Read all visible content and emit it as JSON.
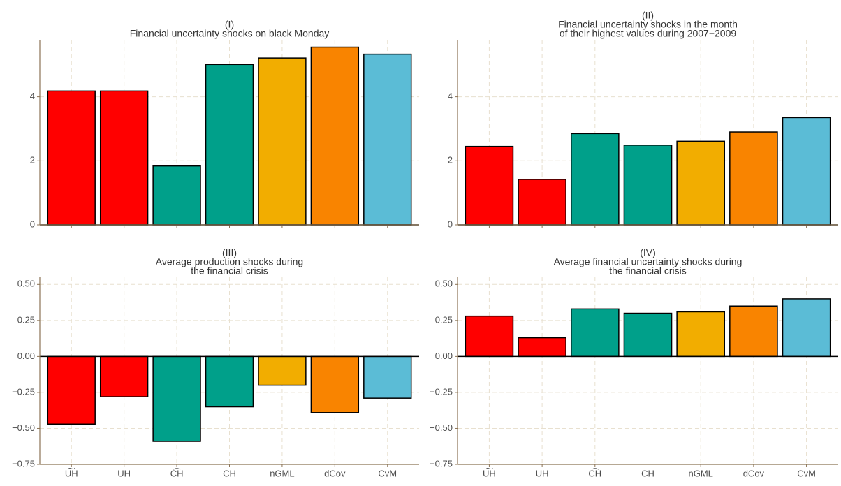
{
  "chart_data": [
    {
      "type": "bar",
      "title": [
        "(I)",
        "Financial uncertainty shocks on black Monday"
      ],
      "categories": [
        null,
        null,
        null,
        null,
        null,
        null,
        null
      ],
      "values": [
        4.18,
        4.18,
        1.84,
        5.01,
        5.21,
        5.55,
        5.33
      ],
      "colors": [
        "#ff0000",
        "#ff0000",
        "#00a08a",
        "#00a08a",
        "#f2ad00",
        "#f98400",
        "#5bbcd6"
      ],
      "ylim": [
        0,
        5.78
      ],
      "yticks": [
        0,
        2,
        4
      ],
      "grid": true
    },
    {
      "type": "bar",
      "title": [
        "(II)",
        "Financial uncertainty shocks in the month",
        "of their highest values during 2007−2009"
      ],
      "categories": [
        null,
        null,
        null,
        null,
        null,
        null,
        null
      ],
      "values": [
        2.45,
        1.42,
        2.85,
        2.49,
        2.61,
        2.9,
        3.35
      ],
      "colors": [
        "#ff0000",
        "#ff0000",
        "#00a08a",
        "#00a08a",
        "#f2ad00",
        "#f98400",
        "#5bbcd6"
      ],
      "ylim": [
        0,
        5.78
      ],
      "yticks": [
        0,
        2,
        4
      ],
      "grid": true
    },
    {
      "type": "bar",
      "title": [
        "(III)",
        "Average production shocks during",
        "the financial crisis"
      ],
      "categories": [
        "U͠H",
        "UH",
        "C͡H",
        "CH",
        "nGML",
        "dCov",
        "CvM"
      ],
      "values": [
        -0.47,
        -0.28,
        -0.59,
        -0.35,
        -0.2,
        -0.39,
        -0.29
      ],
      "colors": [
        "#ff0000",
        "#ff0000",
        "#00a08a",
        "#00a08a",
        "#f2ad00",
        "#f98400",
        "#5bbcd6"
      ],
      "ylim": [
        -0.75,
        0.55
      ],
      "yticks": [
        {
          "value": -0.75,
          "label": "−0.75"
        },
        {
          "value": -0.5,
          "label": "−0.50"
        },
        {
          "value": -0.25,
          "label": "−0.25"
        },
        {
          "value": 0,
          "label": "0.00"
        },
        0.25,
        {
          "value": 0.5,
          "label": "0.50"
        }
      ],
      "grid": true
    },
    {
      "type": "bar",
      "title": [
        "(IV)",
        "Average financial uncertainty shocks during",
        "the financial crisis"
      ],
      "categories": [
        "U͠H",
        "UH",
        "C͡H",
        "CH",
        "nGML",
        "dCov",
        "CvM"
      ],
      "values": [
        0.28,
        0.13,
        0.33,
        0.3,
        0.31,
        0.35,
        0.4
      ],
      "colors": [
        "#ff0000",
        "#ff0000",
        "#00a08a",
        "#00a08a",
        "#f2ad00",
        "#f98400",
        "#5bbcd6"
      ],
      "ylim": [
        -0.75,
        0.55
      ],
      "yticks": [
        {
          "value": -0.75,
          "label": "−0.75"
        },
        {
          "value": -0.5,
          "label": "−0.50"
        },
        {
          "value": -0.25,
          "label": "−0.25"
        },
        {
          "value": 0,
          "label": "0.00"
        },
        0.25,
        {
          "value": 0.5,
          "label": "0.50"
        }
      ],
      "grid": true
    }
  ]
}
